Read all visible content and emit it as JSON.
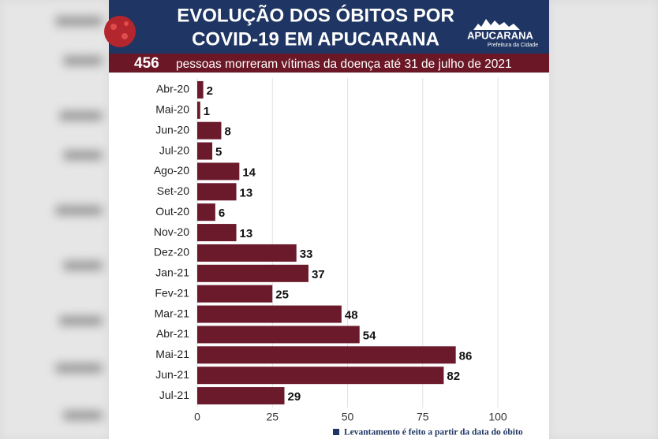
{
  "chart_data": {
    "type": "bar",
    "orientation": "horizontal",
    "title": [
      "EVOLUÇÃO DOS ÓBITOS POR",
      "COVID-19 EM APUCARANA"
    ],
    "highlight": "456",
    "subtitle": "pessoas morreram vítimas da doença até 31 de julho de 2021",
    "note": "Levantamento é feito a partir da data do óbito",
    "categories": [
      "Abr-20",
      "Mai-20",
      "Jun-20",
      "Jul-20",
      "Ago-20",
      "Set-20",
      "Out-20",
      "Nov-20",
      "Dez-20",
      "Jan-21",
      "Fev-21",
      "Mar-21",
      "Abr-21",
      "Mai-21",
      "Jun-21",
      "Jul-21"
    ],
    "values": [
      2,
      1,
      8,
      5,
      14,
      13,
      6,
      13,
      33,
      37,
      25,
      48,
      54,
      86,
      82,
      29
    ],
    "color": "#6b1a2b",
    "xlim": [
      0,
      100
    ],
    "xticks": [
      0,
      25,
      50,
      75,
      100
    ],
    "grid": true
  },
  "logo": {
    "name": "APUCARANA",
    "tagline": "Prefeitura da Cidade"
  }
}
